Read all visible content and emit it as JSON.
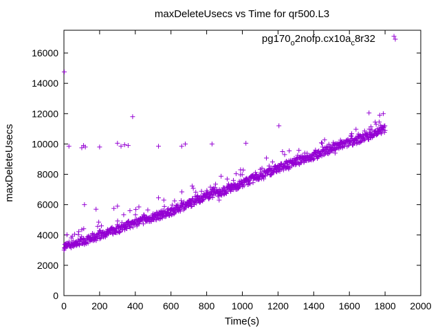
{
  "chart_data": {
    "type": "scatter",
    "title": "maxDeleteUsecs vs Time for qr500.L3",
    "xlabel": "Time(s)",
    "ylabel": "maxDeleteUsecs",
    "xlim": [
      0,
      2000
    ],
    "ylim": [
      0,
      17500
    ],
    "x_ticks": [
      0,
      200,
      400,
      600,
      800,
      1000,
      1200,
      1400,
      1600,
      1800,
      2000
    ],
    "y_ticks": [
      0,
      2000,
      4000,
      6000,
      8000,
      10000,
      12000,
      14000,
      16000
    ],
    "grid": false,
    "legend_position": "top-right",
    "series": [
      {
        "label_main": "pg170",
        "label_sub1": "o",
        "label_mid": "2nofp.cx10a",
        "label_sub2": "c",
        "label_end": "8r32",
        "color": "#9400d3",
        "marker": "plus",
        "trend": [
          [
            0,
            3250
          ],
          [
            100,
            3550
          ],
          [
            200,
            3950
          ],
          [
            300,
            4350
          ],
          [
            400,
            4800
          ],
          [
            500,
            5150
          ],
          [
            600,
            5550
          ],
          [
            700,
            6050
          ],
          [
            800,
            6600
          ],
          [
            900,
            6900
          ],
          [
            1000,
            7400
          ],
          [
            1100,
            7900
          ],
          [
            1200,
            8400
          ],
          [
            1300,
            8850
          ],
          [
            1400,
            9200
          ],
          [
            1500,
            9700
          ],
          [
            1600,
            10100
          ],
          [
            1700,
            10500
          ],
          [
            1800,
            11000
          ]
        ],
        "points": [
          [
            2,
            14750
          ],
          [
            5,
            3100
          ],
          [
            10,
            3350
          ],
          [
            20,
            3250
          ],
          [
            30,
            3400
          ],
          [
            40,
            3150
          ],
          [
            50,
            3500
          ],
          [
            60,
            4050
          ],
          [
            70,
            3300
          ],
          [
            80,
            3600
          ],
          [
            90,
            3450
          ],
          [
            100,
            4350
          ],
          [
            110,
            3700
          ],
          [
            115,
            6000
          ],
          [
            120,
            3550
          ],
          [
            140,
            3800
          ],
          [
            150,
            3650
          ],
          [
            160,
            4100
          ],
          [
            170,
            3900
          ],
          [
            180,
            5700
          ],
          [
            190,
            4000
          ],
          [
            200,
            3850
          ],
          [
            210,
            4600
          ],
          [
            220,
            4200
          ],
          [
            230,
            4050
          ],
          [
            250,
            4300
          ],
          [
            260,
            4150
          ],
          [
            270,
            4500
          ],
          [
            280,
            5750
          ],
          [
            290,
            4350
          ],
          [
            300,
            5900
          ],
          [
            310,
            4600
          ],
          [
            320,
            4450
          ],
          [
            340,
            4700
          ],
          [
            350,
            4550
          ],
          [
            360,
            4900
          ],
          [
            370,
            5600
          ],
          [
            380,
            4750
          ],
          [
            385,
            11800
          ],
          [
            400,
            5000
          ],
          [
            410,
            4850
          ],
          [
            420,
            5850
          ],
          [
            430,
            5100
          ],
          [
            440,
            4950
          ],
          [
            450,
            5300
          ],
          [
            460,
            5200
          ],
          [
            470,
            5650
          ],
          [
            480,
            5050
          ],
          [
            500,
            5400
          ],
          [
            510,
            5250
          ],
          [
            520,
            5500
          ],
          [
            530,
            6450
          ],
          [
            540,
            5350
          ],
          [
            550,
            5600
          ],
          [
            560,
            6300
          ],
          [
            580,
            5500
          ],
          [
            600,
            5700
          ],
          [
            610,
            5550
          ],
          [
            620,
            6250
          ],
          [
            640,
            5850
          ],
          [
            650,
            5700
          ],
          [
            660,
            6100
          ],
          [
            680,
            6000
          ],
          [
            700,
            6200
          ],
          [
            710,
            6050
          ],
          [
            720,
            6400
          ],
          [
            740,
            6300
          ],
          [
            750,
            6600
          ],
          [
            760,
            6150
          ],
          [
            780,
            6550
          ],
          [
            800,
            6700
          ],
          [
            810,
            6450
          ],
          [
            820,
            6800
          ],
          [
            830,
            7000
          ],
          [
            840,
            6650
          ],
          [
            850,
            7350
          ],
          [
            860,
            6800
          ],
          [
            870,
            6300
          ],
          [
            880,
            6900
          ],
          [
            900,
            7100
          ],
          [
            910,
            6850
          ],
          [
            920,
            7250
          ],
          [
            940,
            7000
          ],
          [
            950,
            7600
          ],
          [
            960,
            7200
          ],
          [
            980,
            7400
          ],
          [
            990,
            8300
          ],
          [
            1000,
            7500
          ],
          [
            1010,
            7250
          ],
          [
            1020,
            7700
          ],
          [
            1040,
            7600
          ],
          [
            1050,
            7850
          ],
          [
            1060,
            7450
          ],
          [
            1080,
            8000
          ],
          [
            1100,
            7900
          ],
          [
            1110,
            8400
          ],
          [
            1120,
            7700
          ],
          [
            1140,
            8100
          ],
          [
            1150,
            8550
          ],
          [
            1160,
            8000
          ],
          [
            1180,
            8300
          ],
          [
            1200,
            8450
          ],
          [
            1205,
            11200
          ],
          [
            1210,
            8200
          ],
          [
            1220,
            8700
          ],
          [
            1240,
            8550
          ],
          [
            1250,
            8800
          ],
          [
            1260,
            8350
          ],
          [
            1280,
            8900
          ],
          [
            1300,
            8800
          ],
          [
            1310,
            9250
          ],
          [
            1320,
            8650
          ],
          [
            1340,
            9100
          ],
          [
            1350,
            9400
          ],
          [
            1360,
            8900
          ],
          [
            1380,
            9200
          ],
          [
            1400,
            9300
          ],
          [
            1410,
            9600
          ],
          [
            1420,
            9050
          ],
          [
            1440,
            9500
          ],
          [
            1450,
            9800
          ],
          [
            1460,
            9300
          ],
          [
            1480,
            9600
          ],
          [
            1500,
            9700
          ],
          [
            1510,
            10100
          ],
          [
            1520,
            9400
          ],
          [
            1540,
            10000
          ],
          [
            1550,
            10250
          ],
          [
            1560,
            9800
          ],
          [
            1580,
            10100
          ],
          [
            1600,
            10150
          ],
          [
            1610,
            10500
          ],
          [
            1620,
            9950
          ],
          [
            1640,
            10300
          ],
          [
            1650,
            10650
          ],
          [
            1660,
            10200
          ],
          [
            1680,
            10550
          ],
          [
            1700,
            10500
          ],
          [
            1710,
            12050
          ],
          [
            1720,
            10400
          ],
          [
            1740,
            10800
          ],
          [
            1750,
            11300
          ],
          [
            1760,
            10700
          ],
          [
            1770,
            11900
          ],
          [
            1780,
            11100
          ],
          [
            1790,
            12000
          ],
          [
            1800,
            10900
          ],
          [
            1850,
            17100
          ],
          [
            28,
            9850
          ],
          [
            100,
            9750
          ],
          [
            110,
            9900
          ],
          [
            120,
            9800
          ],
          [
            200,
            9800
          ],
          [
            300,
            10050
          ],
          [
            320,
            9850
          ],
          [
            340,
            9950
          ],
          [
            360,
            9900
          ],
          [
            530,
            9850
          ],
          [
            660,
            9850
          ],
          [
            680,
            10000
          ],
          [
            830,
            10000
          ],
          [
            1020,
            10050
          ]
        ]
      }
    ]
  }
}
